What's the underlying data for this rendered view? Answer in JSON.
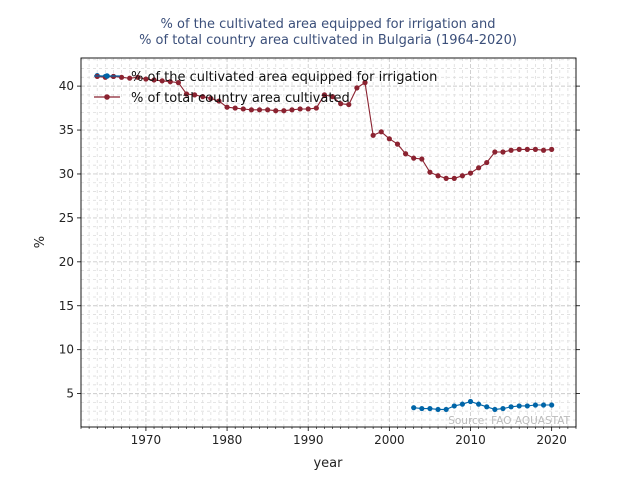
{
  "chart_data": {
    "type": "line",
    "title_line1": "% of the cultivated area equipped for irrigation and",
    "title_line2": "% of total country area cultivated in Bulgaria (1964-2020)",
    "xlabel": "year",
    "ylabel": "%",
    "xlim": [
      1962,
      2023
    ],
    "ylim": [
      1.2,
      43.2
    ],
    "xticks": [
      1970,
      1980,
      1990,
      2000,
      2010,
      2020
    ],
    "yticks": [
      5,
      10,
      15,
      20,
      25,
      30,
      35,
      40
    ],
    "grid": true,
    "legend_position": "top-left",
    "source": "Source: FAO AQUASTAT",
    "series": [
      {
        "name": "% of the cultivated area equipped for irrigation",
        "color": "#0065a8",
        "points": [
          [
            1964,
            41.2
          ],
          [
            1965,
            41.1
          ],
          [
            1966,
            41.1
          ],
          [
            2003,
            3.4
          ],
          [
            2004,
            3.3
          ],
          [
            2005,
            3.3
          ],
          [
            2006,
            3.2
          ],
          [
            2007,
            3.2
          ],
          [
            2008,
            3.6
          ],
          [
            2009,
            3.8
          ],
          [
            2010,
            4.1
          ],
          [
            2011,
            3.8
          ],
          [
            2012,
            3.5
          ],
          [
            2013,
            3.2
          ],
          [
            2014,
            3.3
          ],
          [
            2015,
            3.5
          ],
          [
            2016,
            3.6
          ],
          [
            2017,
            3.6
          ],
          [
            2018,
            3.7
          ],
          [
            2019,
            3.7
          ],
          [
            2020,
            3.7
          ]
        ]
      },
      {
        "name": "% of total country area cultivated",
        "color": "#8b2331",
        "points": [
          [
            1964,
            41.1
          ],
          [
            1965,
            41.0
          ],
          [
            1966,
            41.1
          ],
          [
            1967,
            41.0
          ],
          [
            1968,
            40.9
          ],
          [
            1969,
            41.0
          ],
          [
            1970,
            40.8
          ],
          [
            1971,
            40.7
          ],
          [
            1972,
            40.6
          ],
          [
            1973,
            40.5
          ],
          [
            1974,
            40.4
          ],
          [
            1975,
            39.1
          ],
          [
            1976,
            39.0
          ],
          [
            1977,
            38.8
          ],
          [
            1978,
            38.6
          ],
          [
            1979,
            38.3
          ],
          [
            1980,
            37.6
          ],
          [
            1981,
            37.5
          ],
          [
            1982,
            37.4
          ],
          [
            1983,
            37.3
          ],
          [
            1984,
            37.3
          ],
          [
            1985,
            37.3
          ],
          [
            1986,
            37.2
          ],
          [
            1987,
            37.2
          ],
          [
            1988,
            37.3
          ],
          [
            1989,
            37.4
          ],
          [
            1990,
            37.4
          ],
          [
            1991,
            37.5
          ],
          [
            1992,
            39.0
          ],
          [
            1993,
            38.8
          ],
          [
            1994,
            38.0
          ],
          [
            1995,
            37.9
          ],
          [
            1996,
            39.8
          ],
          [
            1997,
            40.4
          ],
          [
            1998,
            34.4
          ],
          [
            1999,
            34.8
          ],
          [
            2000,
            34.0
          ],
          [
            2001,
            33.4
          ],
          [
            2002,
            32.3
          ],
          [
            2003,
            31.8
          ],
          [
            2004,
            31.7
          ],
          [
            2005,
            30.2
          ],
          [
            2006,
            29.8
          ],
          [
            2007,
            29.5
          ],
          [
            2008,
            29.5
          ],
          [
            2009,
            29.8
          ],
          [
            2010,
            30.1
          ],
          [
            2011,
            30.7
          ],
          [
            2012,
            31.3
          ],
          [
            2013,
            32.5
          ],
          [
            2014,
            32.5
          ],
          [
            2015,
            32.7
          ],
          [
            2016,
            32.8
          ],
          [
            2017,
            32.8
          ],
          [
            2018,
            32.8
          ],
          [
            2019,
            32.7
          ],
          [
            2020,
            32.8
          ]
        ]
      }
    ]
  }
}
